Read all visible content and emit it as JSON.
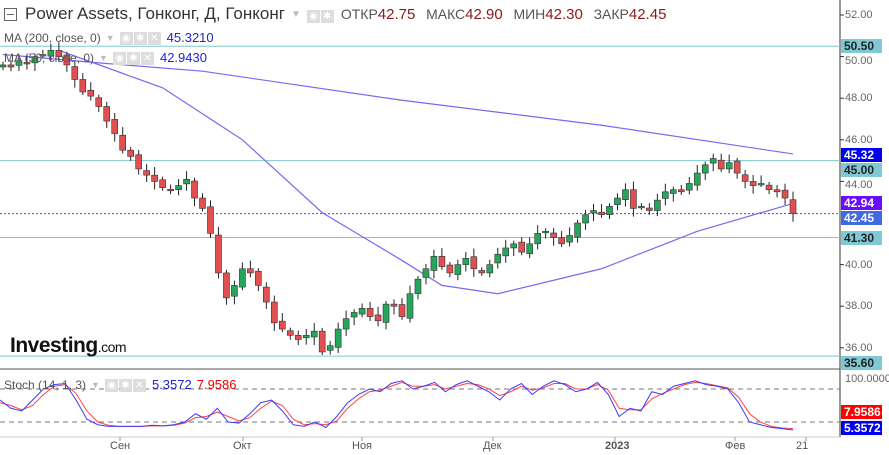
{
  "header": {
    "title": "Power Assets, Гонконг, Д, Гонконг",
    "open_label": "ОТКР",
    "open": "42.75",
    "high_label": "МАКС",
    "high": "42.90",
    "low_label": "МИН",
    "low": "42.30",
    "close_label": "ЗАКР",
    "close": "42.45"
  },
  "indicators": {
    "ma200": {
      "label": "MA (200, close, 0)",
      "value": "45.3210"
    },
    "ma50": {
      "label": "MA (50, close, 0)",
      "value": "42.9430"
    },
    "stoch": {
      "label": "Stoch (14, 1, 3)",
      "k": "5.3572",
      "d": "7.9586"
    }
  },
  "logo": {
    "text": "Investing",
    "suffix": ".com"
  },
  "colors": {
    "up": "#26a65b",
    "down": "#e05050",
    "ma": "#7b68ee",
    "hline": "#7fc8d0",
    "stoch_k": "#3b3bff",
    "stoch_d": "#ff4444"
  },
  "chart_data": {
    "type": "candlestick",
    "title": "Power Assets, Гонконг, Д, Гонконг",
    "ylim": [
      35.0,
      52.6
    ],
    "y_ticks": [
      "52.00",
      "50.00",
      "48.00",
      "46.00",
      "44.00",
      "40.00",
      "38.00",
      "36.00"
    ],
    "x_ticks": [
      "Сен",
      "Окт",
      "Ноя",
      "Дек",
      "2023",
      "Фев",
      "21"
    ],
    "closes": [
      49.6,
      49.5,
      49.8,
      49.7,
      50.0,
      50.1,
      50.3,
      50.0,
      49.6,
      48.9,
      48.3,
      48.1,
      47.6,
      46.9,
      46.3,
      45.5,
      45.2,
      44.6,
      44.3,
      44.0,
      43.7,
      43.6,
      43.8,
      44.1,
      43.2,
      42.7,
      41.5,
      39.6,
      38.4,
      39.0,
      39.8,
      39.6,
      39.0,
      38.2,
      37.2,
      36.9,
      36.6,
      36.4,
      36.6,
      36.8,
      35.8,
      36.1,
      36.9,
      37.4,
      37.7,
      37.9,
      37.5,
      37.3,
      38.1,
      38.0,
      37.5,
      38.6,
      39.3,
      39.8,
      40.4,
      39.9,
      39.6,
      40.0,
      40.3,
      39.8,
      39.6,
      40.0,
      40.5,
      40.8,
      41.0,
      40.6,
      41.0,
      41.5,
      41.6,
      41.3,
      41.0,
      41.4,
      42.0,
      42.4,
      42.6,
      42.4,
      42.8,
      43.2,
      43.6,
      42.7,
      42.8,
      42.6,
      43.1,
      43.5,
      43.6,
      43.5,
      43.9,
      44.4,
      44.8,
      45.1,
      44.6,
      44.9,
      44.4,
      44.0,
      43.8,
      43.9,
      43.6,
      43.5,
      43.2,
      42.45
    ],
    "ma200": {
      "at_index": [
        0,
        12,
        25,
        50,
        75,
        99
      ],
      "values": [
        50.1,
        49.7,
        49.3,
        47.9,
        46.7,
        45.32
      ]
    },
    "ma50": {
      "at_index": [
        7,
        20,
        30,
        40,
        50,
        55,
        62,
        75,
        87,
        99
      ],
      "values": [
        50.3,
        48.5,
        46.0,
        42.5,
        40.2,
        39.0,
        38.6,
        39.8,
        41.6,
        42.94
      ]
    },
    "horizontal_lines": [
      {
        "value": 50.5,
        "label": "50.50"
      },
      {
        "value": 45.0,
        "label": "45.00"
      },
      {
        "value": 41.3,
        "label": "41.30"
      },
      {
        "value": 35.6,
        "label": "35.60"
      }
    ],
    "price_tags": [
      {
        "value": 45.32,
        "label": "45.32",
        "color": "#0000ee"
      },
      {
        "value": 42.94,
        "label": "42.94",
        "color": "#6a0dff"
      },
      {
        "value": 42.45,
        "label": "42.45",
        "color": "#4169e1"
      }
    ],
    "stoch": {
      "ylim": [
        0,
        100
      ],
      "tick": "100.0000",
      "levels": [
        80,
        20
      ],
      "k": [
        60,
        45,
        40,
        60,
        80,
        88,
        90,
        60,
        25,
        15,
        12,
        12,
        12,
        12,
        14,
        13,
        15,
        20,
        35,
        25,
        45,
        20,
        18,
        35,
        55,
        60,
        40,
        15,
        12,
        20,
        10,
        30,
        55,
        70,
        80,
        75,
        90,
        95,
        80,
        85,
        92,
        75,
        88,
        95,
        85,
        75,
        60,
        80,
        90,
        70,
        85,
        95,
        88,
        75,
        80,
        92,
        70,
        30,
        45,
        40,
        75,
        70,
        85,
        90,
        95,
        88,
        85,
        80,
        55,
        20,
        15,
        10,
        8,
        5.36
      ],
      "d": [
        55,
        50,
        42,
        50,
        70,
        85,
        88,
        72,
        40,
        20,
        14,
        12,
        12,
        12,
        13,
        13,
        14,
        18,
        28,
        30,
        38,
        30,
        22,
        28,
        45,
        58,
        50,
        25,
        15,
        17,
        15,
        22,
        45,
        62,
        75,
        78,
        85,
        92,
        85,
        85,
        88,
        80,
        85,
        90,
        88,
        80,
        68,
        75,
        85,
        78,
        82,
        90,
        90,
        80,
        80,
        88,
        78,
        45,
        42,
        42,
        62,
        72,
        80,
        88,
        92,
        90,
        86,
        82,
        65,
        35,
        20,
        12,
        9,
        7.96
      ],
      "k_label": "5.3572",
      "d_label": "7.9586"
    }
  }
}
